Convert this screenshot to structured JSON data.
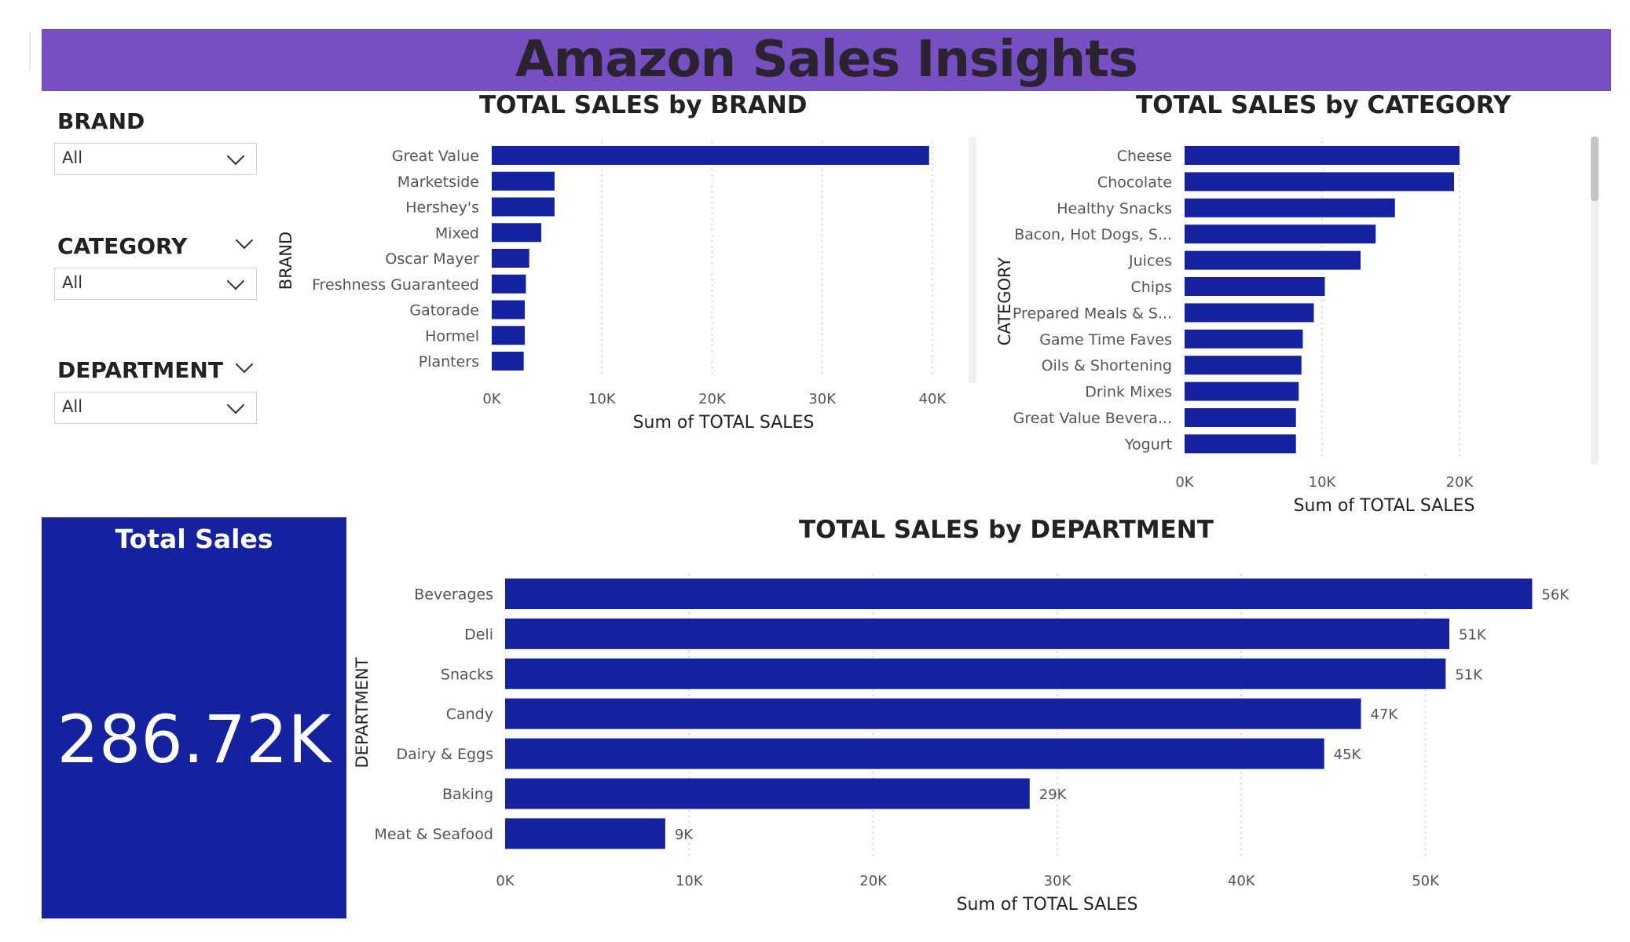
{
  "header": {
    "title": "Amazon Sales Insights"
  },
  "slicers": [
    {
      "label": "BRAND",
      "value": "All"
    },
    {
      "label": "CATEGORY",
      "value": "All"
    },
    {
      "label": "DEPARTMENT",
      "value": "All"
    }
  ],
  "kpi": {
    "title": "Total Sales",
    "value": "286.72K"
  },
  "colors": {
    "bar": "#1422a0",
    "header": "#7650c2"
  },
  "chart_data": [
    {
      "type": "bar",
      "orientation": "horizontal",
      "title": "TOTAL SALES by BRAND",
      "xlabel": "Sum of TOTAL SALES",
      "ylabel": "BRAND",
      "categories": [
        "Great Value",
        "Marketside",
        "Hershey's",
        "Mixed",
        "Oscar Mayer",
        "Freshness Guaranteed",
        "Gatorade",
        "Hormel",
        "Planters"
      ],
      "values": [
        39700,
        5700,
        5700,
        4500,
        3400,
        3100,
        3000,
        3000,
        2900
      ],
      "xlim": [
        0,
        42000
      ],
      "xticks": [
        0,
        10000,
        20000,
        30000,
        40000
      ],
      "xtick_labels": [
        "0K",
        "10K",
        "20K",
        "30K",
        "40K"
      ],
      "grid": true
    },
    {
      "type": "bar",
      "orientation": "horizontal",
      "title": "TOTAL SALES by CATEGORY",
      "xlabel": "Sum of TOTAL SALES",
      "ylabel": "CATEGORY",
      "categories": [
        "Cheese",
        "Chocolate",
        "Healthy Snacks",
        "Bacon, Hot Dogs, S...",
        "Juices",
        "Chips",
        "Prepared Meals & S...",
        "Game Time Faves",
        "Oils & Shortening",
        "Drink Mixes",
        "Great Value Bevera...",
        "Yogurt"
      ],
      "values": [
        20000,
        19600,
        15300,
        13900,
        12800,
        10200,
        9400,
        8600,
        8500,
        8300,
        8100,
        8100
      ],
      "xlim": [
        0,
        24000
      ],
      "xticks": [
        0,
        10000,
        20000
      ],
      "xtick_labels": [
        "0K",
        "10K",
        "20K"
      ],
      "grid": true
    },
    {
      "type": "bar",
      "orientation": "horizontal",
      "title": "TOTAL SALES by DEPARTMENT",
      "xlabel": "Sum of TOTAL SALES",
      "ylabel": "DEPARTMENT",
      "categories": [
        "Beverages",
        "Deli",
        "Snacks",
        "Candy",
        "Dairy & Eggs",
        "Baking",
        "Meat & Seafood"
      ],
      "values": [
        55800,
        51300,
        51100,
        46500,
        44500,
        28500,
        8700
      ],
      "data_labels": [
        "56K",
        "51K",
        "51K",
        "47K",
        "45K",
        "29K",
        "9K"
      ],
      "xlim": [
        0,
        58000
      ],
      "xticks": [
        0,
        10000,
        20000,
        30000,
        40000,
        50000
      ],
      "xtick_labels": [
        "0K",
        "10K",
        "20K",
        "30K",
        "40K",
        "50K"
      ],
      "grid": true
    }
  ]
}
